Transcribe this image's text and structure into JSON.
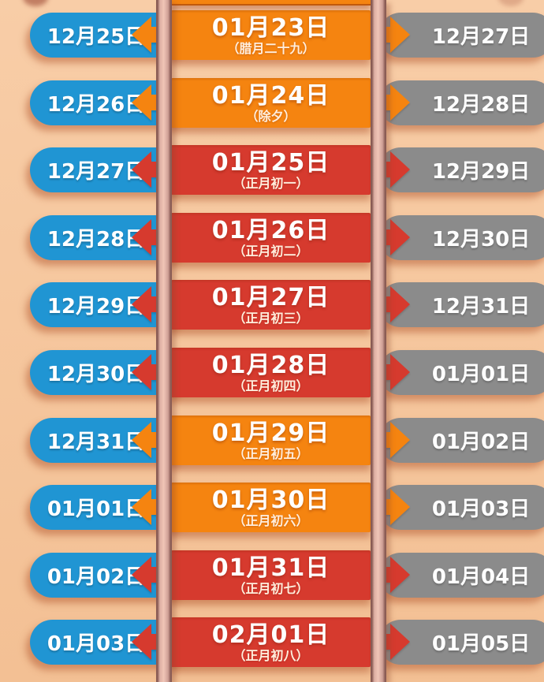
{
  "colors": {
    "bg_top": "#f8cda7",
    "bg_bottom": "#f3c094",
    "blue": "#2095d3",
    "gray": "#8b8b8b",
    "orange": "#f58410",
    "red": "#d63a2e",
    "rail_dark": "#8a5c55",
    "rail_mid": "#ddafa3",
    "rail_light": "#f0c5b7",
    "rail_mid2": "#cfa096",
    "text": "#ffffff",
    "lunar_text": "#ffeedd"
  },
  "rows": [
    {
      "left": "12月25日",
      "center": "01月23日",
      "lunar": "（腊月二十九）",
      "right": "12月27日",
      "theme": "orange"
    },
    {
      "left": "12月26日",
      "center": "01月24日",
      "lunar": "（除夕）",
      "right": "12月28日",
      "theme": "orange"
    },
    {
      "left": "12月27日",
      "center": "01月25日",
      "lunar": "（正月初一）",
      "right": "12月29日",
      "theme": "red"
    },
    {
      "left": "12月28日",
      "center": "01月26日",
      "lunar": "（正月初二）",
      "right": "12月30日",
      "theme": "red"
    },
    {
      "left": "12月29日",
      "center": "01月27日",
      "lunar": "（正月初三）",
      "right": "12月31日",
      "theme": "red"
    },
    {
      "left": "12月30日",
      "center": "01月28日",
      "lunar": "（正月初四）",
      "right": "01月01日",
      "theme": "red"
    },
    {
      "left": "12月31日",
      "center": "01月29日",
      "lunar": "（正月初五）",
      "right": "01月02日",
      "theme": "orange"
    },
    {
      "left": "01月01日",
      "center": "01月30日",
      "lunar": "（正月初六）",
      "right": "01月03日",
      "theme": "orange"
    },
    {
      "left": "01月02日",
      "center": "01月31日",
      "lunar": "（正月初七）",
      "right": "01月04日",
      "theme": "red"
    },
    {
      "left": "01月03日",
      "center": "02月01日",
      "lunar": "（正月初八）",
      "right": "01月05日",
      "theme": "red"
    }
  ]
}
